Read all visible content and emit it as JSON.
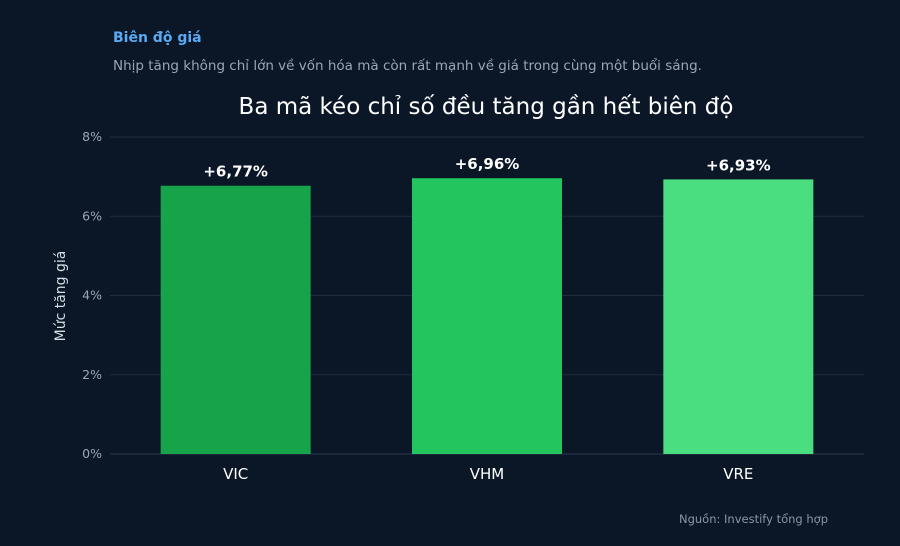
{
  "header": {
    "eyebrow": "Biên độ giá",
    "subtitle": "Nhịp tăng không chỉ lớn về vốn hóa mà còn rất mạnh về giá trong cùng một buổi sáng."
  },
  "colors": {
    "background": "#0b1727",
    "eyebrow": "#5aa9f5",
    "bar_colors": [
      "#16a34a",
      "#22c55e",
      "#4ade80"
    ],
    "grid": "#1f2d40"
  },
  "chart_data": {
    "type": "bar",
    "title": "Ba mã kéo chỉ số đều tăng gần hết biên độ",
    "xlabel": "",
    "ylabel": "Mức tăng giá",
    "categories": [
      "VIC",
      "VHM",
      "VRE"
    ],
    "values": [
      6.77,
      6.96,
      6.93
    ],
    "data_labels": [
      "+6,77%",
      "+6,96%",
      "+6,93%"
    ],
    "ylim": [
      0,
      8
    ],
    "yticks": [
      0,
      2,
      4,
      6,
      8
    ],
    "ytick_labels": [
      "0%",
      "2%",
      "4%",
      "6%",
      "8%"
    ],
    "grid": true,
    "legend": "none"
  },
  "footer": {
    "source": "Nguồn: Investify tổng hợp"
  }
}
